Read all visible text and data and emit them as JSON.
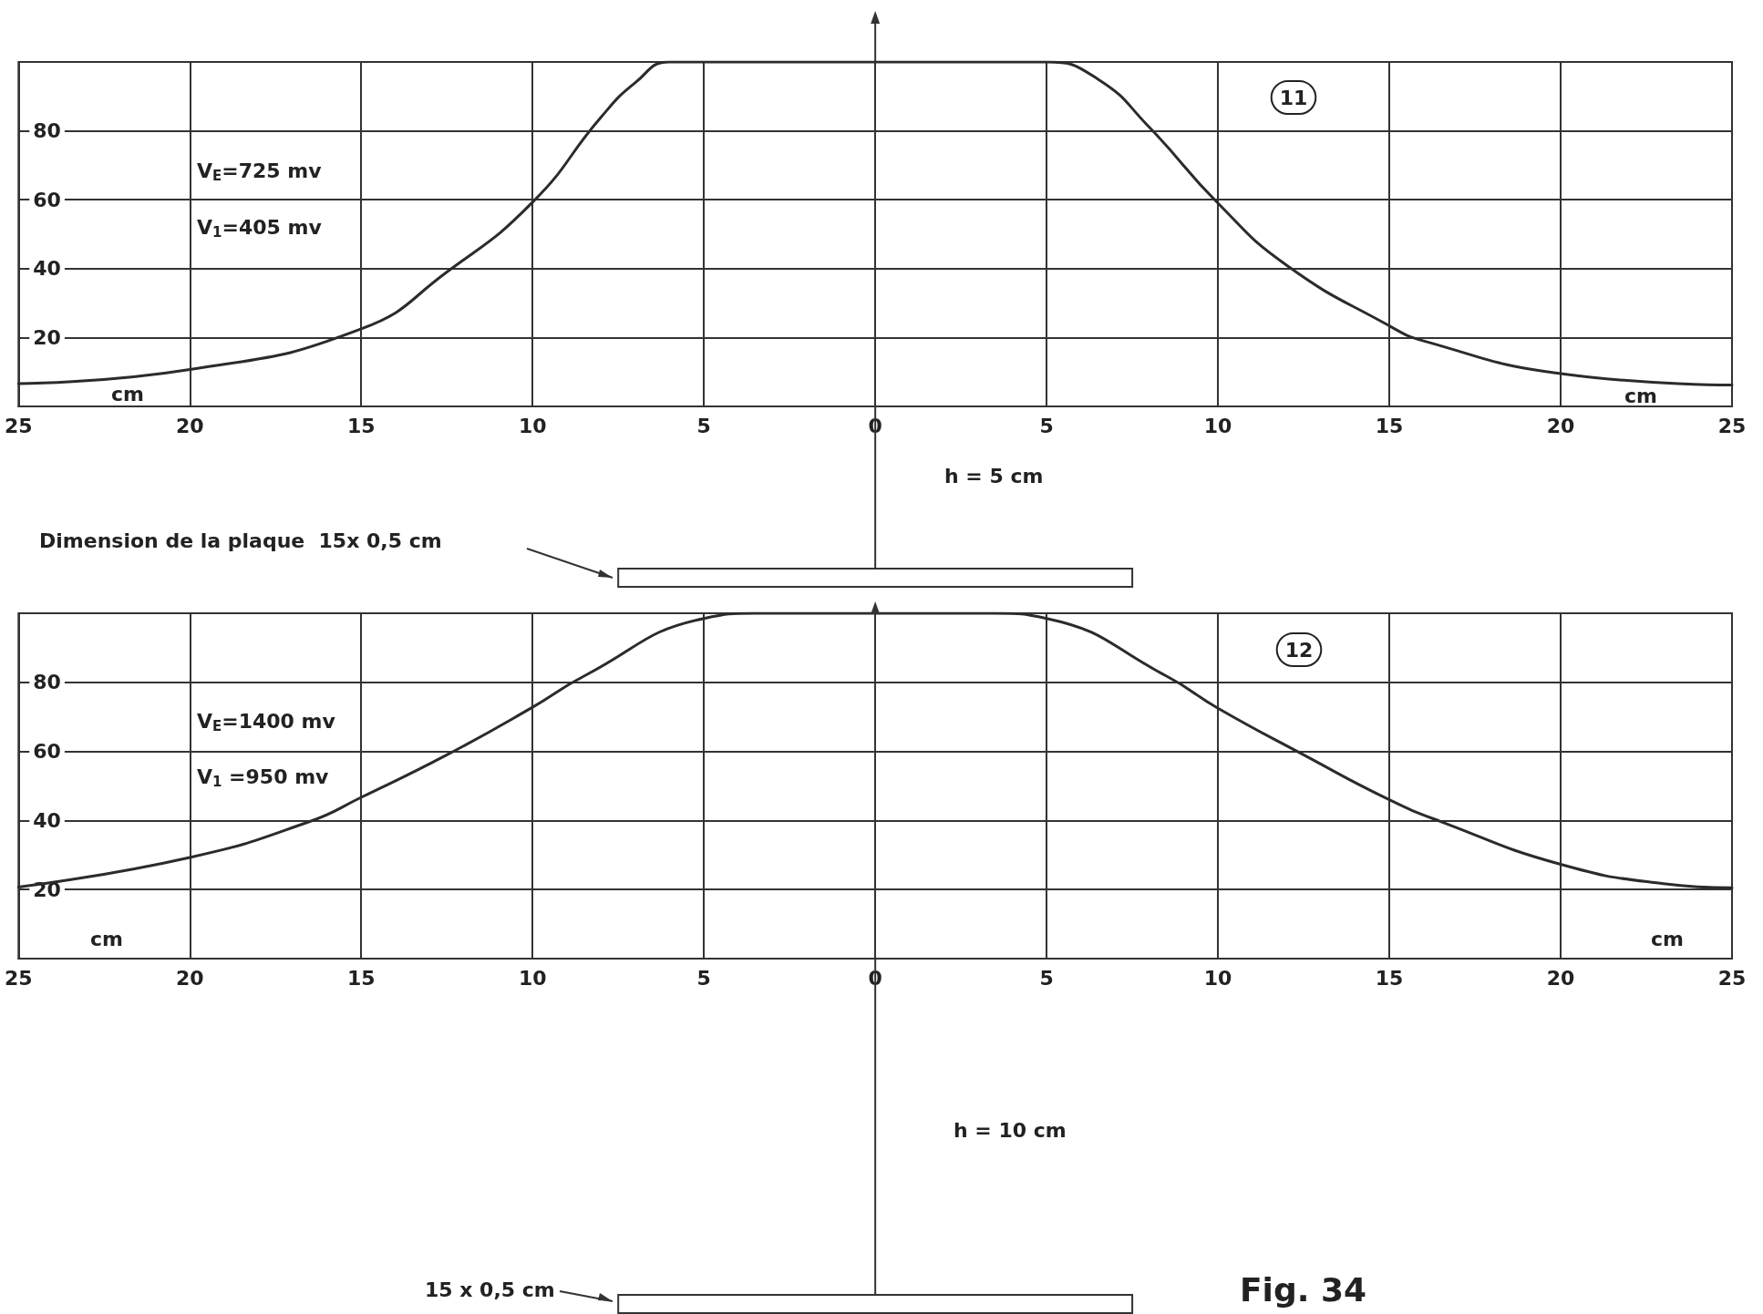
{
  "chart_data": [
    {
      "type": "line",
      "xlim": [
        -25,
        25
      ],
      "ylim": [
        0,
        100
      ],
      "xticks": [
        {
          "value": -25,
          "label": "25"
        },
        {
          "value": -20,
          "label": "20"
        },
        {
          "value": -15,
          "label": "15"
        },
        {
          "value": -10,
          "label": "10"
        },
        {
          "value": -5,
          "label": "5"
        },
        0,
        5,
        10,
        15,
        20,
        25
      ],
      "yticks": [
        20,
        40,
        60,
        80
      ],
      "grid": true,
      "marker": "none",
      "line_style": "solid",
      "series": [
        {
          "color": "#2b2b2b",
          "x": [
            -25,
            -20,
            -15,
            -12.5,
            -10,
            -8,
            -7,
            -6,
            0,
            5,
            6.5,
            8,
            10,
            12,
            15,
            16,
            20,
            25
          ],
          "values": [
            6.6,
            10.7,
            22.5,
            39,
            59.3,
            84,
            94,
            100,
            100,
            100,
            95,
            81,
            59,
            41,
            23.4,
            19,
            9.5,
            6.2
          ]
        }
      ],
      "annotations": [
        "V$_{E}$=725 mv",
        "V$_{1}$=405 mv",
        "11",
        "cm",
        "cm",
        "h = 5 cm",
        "Dimension de la plaque  15x 0,5 cm"
      ]
    },
    {
      "type": "line",
      "xlim": [
        -25,
        25
      ],
      "ylim": [
        0,
        100
      ],
      "xticks": [
        {
          "value": -25,
          "label": "25"
        },
        {
          "value": -20,
          "label": "20"
        },
        {
          "value": -15,
          "label": "15"
        },
        {
          "value": -10,
          "label": "10"
        },
        {
          "value": -5,
          "label": "5"
        },
        0,
        5,
        10,
        15,
        20,
        25
      ],
      "yticks": [
        20,
        40,
        60,
        80
      ],
      "grid": true,
      "marker": "none",
      "line_style": "solid",
      "series": [
        {
          "color": "#2b2b2b",
          "x": [
            -25,
            -20,
            -16.5,
            -15,
            -12.5,
            -10,
            -8.5,
            -5,
            -3.5,
            0,
            3.5,
            5,
            8.5,
            10,
            12.5,
            15,
            16.5,
            20,
            23,
            25
          ],
          "values": [
            20.7,
            29.3,
            39.7,
            46.7,
            59,
            72.8,
            81.8,
            98.5,
            100,
            100,
            100,
            98.5,
            81.8,
            72.5,
            59,
            46,
            39.7,
            27.3,
            21.7,
            20.5
          ]
        }
      ],
      "annotations": [
        "V$_{E}$=1400 mv",
        "V$_{1}$ =950 mv",
        "12",
        "cm",
        "cm",
        "h = 10 cm",
        "15 x 0,5 cm",
        "Fig. 34"
      ]
    }
  ]
}
